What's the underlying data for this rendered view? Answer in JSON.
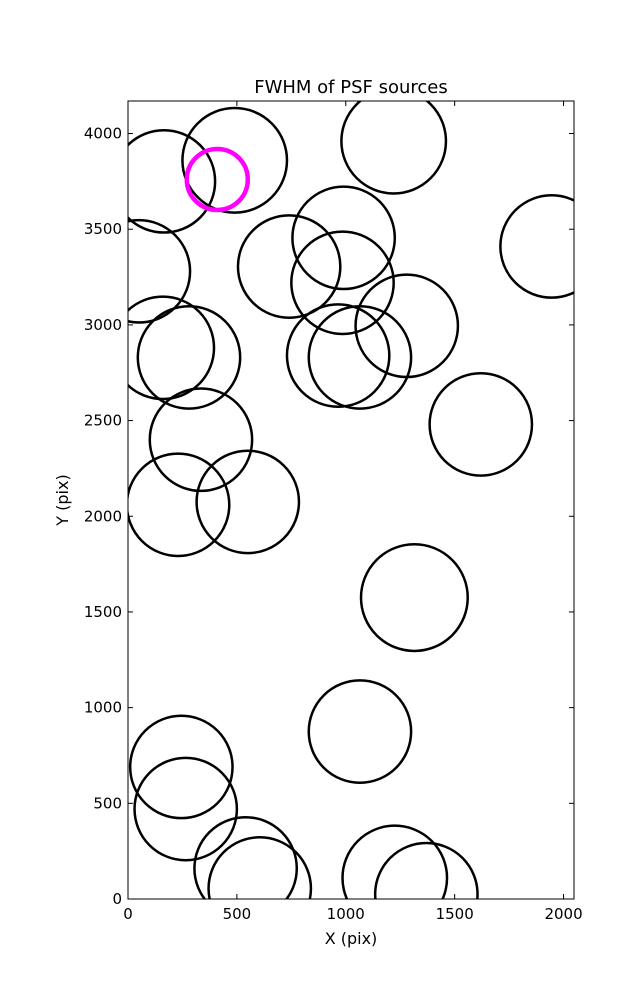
{
  "chart_data": {
    "type": "scatter",
    "title": "FWHM of PSF sources",
    "xlabel": "X (pix)",
    "ylabel": "Y (pix)",
    "xlim": [
      0,
      2048
    ],
    "ylim": [
      0,
      4170
    ],
    "xticks": [
      0,
      500,
      1000,
      1500,
      2000
    ],
    "yticks": [
      0,
      500,
      1000,
      1500,
      2000,
      2500,
      3000,
      3500,
      4000
    ],
    "grid": false,
    "marker": "open circle, radius = FWHM",
    "series": [
      {
        "color": "#000000",
        "points": [
          {
            "x": 165,
            "y": 3750,
            "r": 235
          },
          {
            "x": 490,
            "y": 3860,
            "r": 240
          },
          {
            "x": 50,
            "y": 3280,
            "r": 235
          },
          {
            "x": 1220,
            "y": 3960,
            "r": 240
          },
          {
            "x": 1945,
            "y": 3410,
            "r": 235
          },
          {
            "x": 990,
            "y": 3455,
            "r": 235
          },
          {
            "x": 740,
            "y": 3305,
            "r": 235
          },
          {
            "x": 985,
            "y": 3220,
            "r": 235
          },
          {
            "x": 1280,
            "y": 2995,
            "r": 235
          },
          {
            "x": 160,
            "y": 2880,
            "r": 235
          },
          {
            "x": 280,
            "y": 2830,
            "r": 235
          },
          {
            "x": 965,
            "y": 2840,
            "r": 235
          },
          {
            "x": 1065,
            "y": 2830,
            "r": 235
          },
          {
            "x": 1620,
            "y": 2480,
            "r": 235
          },
          {
            "x": 335,
            "y": 2400,
            "r": 235
          },
          {
            "x": 230,
            "y": 2060,
            "r": 235
          },
          {
            "x": 550,
            "y": 2075,
            "r": 235
          },
          {
            "x": 1315,
            "y": 1575,
            "r": 245
          },
          {
            "x": 1065,
            "y": 875,
            "r": 235
          },
          {
            "x": 245,
            "y": 690,
            "r": 235
          },
          {
            "x": 265,
            "y": 470,
            "r": 235
          },
          {
            "x": 540,
            "y": 160,
            "r": 235
          },
          {
            "x": 605,
            "y": 55,
            "r": 235
          },
          {
            "x": 1225,
            "y": 110,
            "r": 240
          },
          {
            "x": 1370,
            "y": 25,
            "r": 235
          }
        ]
      },
      {
        "color": "#ff00ff",
        "points": [
          {
            "x": 410,
            "y": 3760,
            "r": 140
          }
        ]
      }
    ]
  }
}
